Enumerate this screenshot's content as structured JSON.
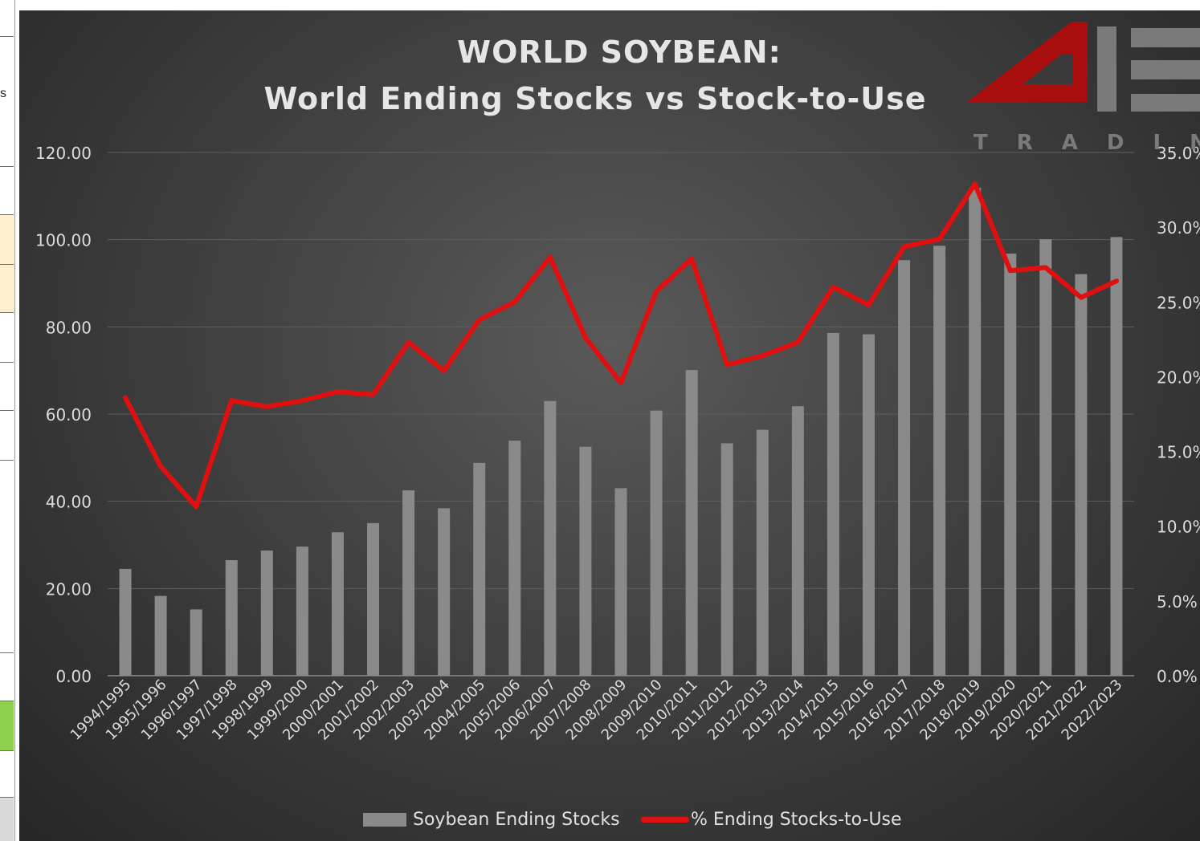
{
  "chart_data": {
    "type": "bar",
    "title": "WORLD SOYBEAN:",
    "subtitle": "World Ending Stocks vs Stock-to-Use",
    "categories": [
      "1994/1995",
      "1995/1996",
      "1996/1997",
      "1997/1998",
      "1998/1999",
      "1999/2000",
      "2000/2001",
      "2001/2002",
      "2002/2003",
      "2003/2004",
      "2004/2005",
      "2005/2006",
      "2006/2007",
      "2007/2008",
      "2008/2009",
      "2009/2010",
      "2010/2011",
      "2011/2012",
      "2012/2013",
      "2013/2014",
      "2014/2015",
      "2015/2016",
      "2016/2017",
      "2017/2018",
      "2018/2019",
      "2019/2020",
      "2020/2021",
      "2021/2022",
      "2022/2023"
    ],
    "series": [
      {
        "name": "Soybean Ending Stocks",
        "kind": "bar",
        "axis": "left",
        "color": "#8a8a8a",
        "values": [
          24.5,
          18.3,
          15.2,
          26.5,
          28.7,
          29.6,
          32.9,
          35.0,
          42.5,
          38.4,
          48.8,
          53.9,
          63.0,
          52.5,
          43.0,
          60.8,
          70.1,
          53.3,
          56.4,
          61.8,
          78.6,
          78.3,
          95.3,
          98.6,
          111.9,
          96.8,
          100.1,
          92.1,
          100.6
        ]
      },
      {
        "name": "% Ending Stocks-to-Use",
        "kind": "line",
        "axis": "right",
        "color": "#e01010",
        "values": [
          18.6,
          14.0,
          11.3,
          18.4,
          18.0,
          18.4,
          19.0,
          18.8,
          22.3,
          20.4,
          23.8,
          25.0,
          28.0,
          22.6,
          19.6,
          25.7,
          27.9,
          20.8,
          21.4,
          22.3,
          26.0,
          24.8,
          28.7,
          29.2,
          32.9,
          27.1,
          27.3,
          25.3,
          26.4
        ]
      }
    ],
    "y_left": {
      "min": 0,
      "max": 120,
      "ticks": [
        "0.00",
        "20.00",
        "40.00",
        "60.00",
        "80.00",
        "100.00",
        "120.00"
      ]
    },
    "y_right": {
      "min": 0,
      "max": 35,
      "ticks": [
        "0.0%",
        "5.0%",
        "10.0%",
        "15.0%",
        "20.0%",
        "25.0%",
        "30.0%",
        "35.0%"
      ]
    },
    "grid": true,
    "legend": "bottom"
  },
  "logo": {
    "text": "TRADING"
  },
  "sheet": {
    "fragment_text": "s"
  },
  "legend": {
    "bar_label": "Soybean Ending Stocks",
    "line_label": "% Ending Stocks-to-Use"
  },
  "colors": {
    "bar": "#8a8a8a",
    "line": "#e01010",
    "grid": "#5e5e5e",
    "text": "#dcdcdc"
  }
}
